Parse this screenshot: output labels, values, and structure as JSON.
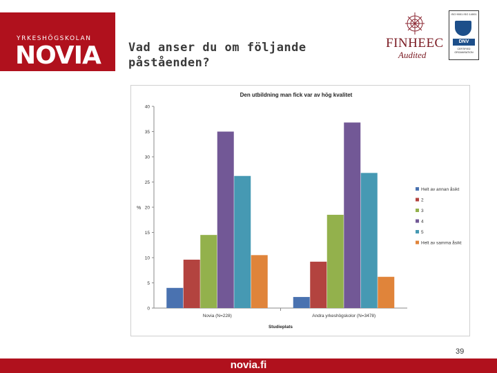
{
  "header": {
    "logo_small": "YRKESHÖGSKOLAN",
    "logo_main": "NOVIA",
    "title": "Vad anser du om följande påståenden?",
    "finheec_name": "FINHEEC",
    "finheec_sub": "Audited",
    "dnv_top": "ISO 9001 ISO 14001",
    "dnv_logo": "DNV",
    "dnv_bottom": "CERTIFIED ORGANISATION"
  },
  "chart_data": {
    "type": "bar",
    "title": "Den utbildning man fick var av hög kvalitet",
    "xlabel": "Studieplats",
    "ylabel": "%",
    "ylim": [
      0,
      40
    ],
    "yticks": [
      0,
      5,
      10,
      15,
      20,
      25,
      30,
      35,
      40
    ],
    "categories": [
      "Novia (N=228)",
      "Andra yrkeshögskolor (N=3478)"
    ],
    "series": [
      {
        "name": "Helt av annan åsikt",
        "color": "#4a72b0",
        "values": [
          4,
          2.2
        ]
      },
      {
        "name": "2",
        "color": "#b3433f",
        "values": [
          9.6,
          9.2
        ]
      },
      {
        "name": "3",
        "color": "#93b14c",
        "values": [
          14.5,
          18.5
        ]
      },
      {
        "name": "4",
        "color": "#725896",
        "values": [
          35,
          36.8
        ]
      },
      {
        "name": "5",
        "color": "#4699b3",
        "values": [
          26.2,
          26.8
        ]
      },
      {
        "name": "Helt av samma åsikt",
        "color": "#e0843a",
        "values": [
          10.5,
          6.2
        ]
      }
    ],
    "grid": false,
    "legend_position": "right"
  },
  "footer": {
    "page_number": "39",
    "site": "novia.fi"
  }
}
